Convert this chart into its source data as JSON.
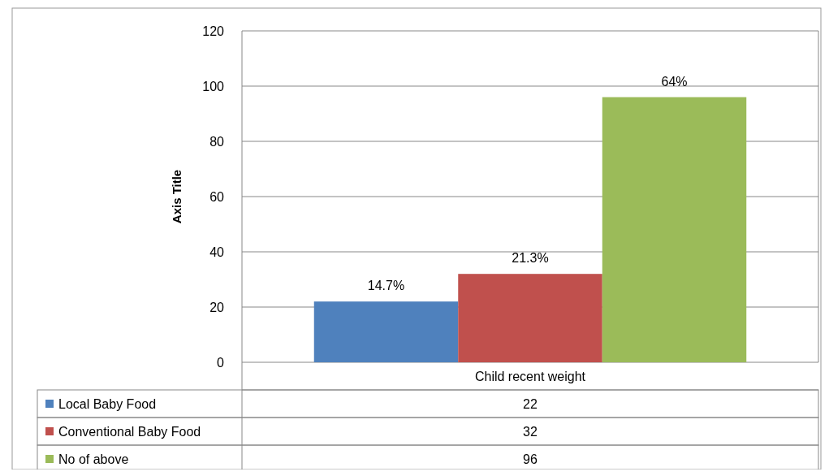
{
  "chart_data": {
    "type": "bar",
    "ylabel": "Axis Title",
    "categories": [
      "Child recent weight"
    ],
    "series": [
      {
        "name": "Local Baby Food",
        "color": "#4f81bd",
        "values": [
          22
        ]
      },
      {
        "name": "Conventional Baby Food",
        "color": "#c0504d",
        "values": [
          32
        ]
      },
      {
        "name": "No of above",
        "color": "#9bbb59",
        "values": [
          96
        ]
      }
    ],
    "annotations": [
      "14.7%",
      "21.3%",
      "64%",
      "22",
      "32",
      "96"
    ],
    "ylim": [
      0,
      120
    ],
    "yticks": [
      0,
      20,
      40,
      60,
      80,
      100,
      120
    ],
    "grid": "y",
    "legend": "bottom"
  }
}
